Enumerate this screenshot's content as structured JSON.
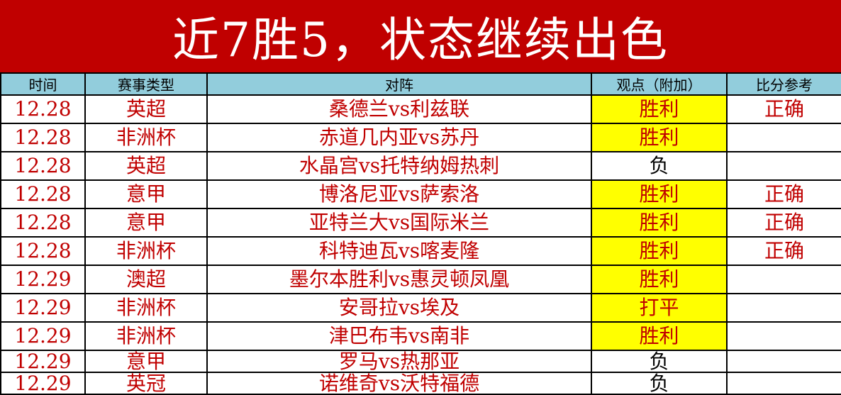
{
  "title": "近7胜5，状态继续出色",
  "headers": [
    "时间",
    "赛事类型",
    "对阵",
    "观点（附加）",
    "比分参考"
  ],
  "colors": {
    "title_bg": "#c00000",
    "header_bg": "#92cddc",
    "highlight": "#ffff00",
    "text": "#c00000"
  },
  "rows": [
    {
      "date": "12.28",
      "league": "英超",
      "match": "桑德兰vs利兹联",
      "pick": "胜利",
      "result": "正确",
      "hl": true
    },
    {
      "date": "12.28",
      "league": "非洲杯",
      "match": "赤道几内亚vs苏丹",
      "pick": "胜利",
      "result": "",
      "hl": true
    },
    {
      "date": "12.28",
      "league": "英超",
      "match": "水晶宫vs托特纳姆热刺",
      "pick": "负",
      "result": "",
      "hl": false
    },
    {
      "date": "12.28",
      "league": "意甲",
      "match": "博洛尼亚vs萨索洛",
      "pick": "胜利",
      "result": "正确",
      "hl": true
    },
    {
      "date": "12.28",
      "league": "意甲",
      "match": "亚特兰大vs国际米兰",
      "pick": "胜利",
      "result": "正确",
      "hl": true
    },
    {
      "date": "12.28",
      "league": "非洲杯",
      "match": "科特迪瓦vs喀麦隆",
      "pick": "胜利",
      "result": "正确",
      "hl": true
    },
    {
      "date": "12.29",
      "league": "澳超",
      "match": "墨尔本胜利vs惠灵顿凤凰",
      "pick": "胜利",
      "result": "",
      "hl": true
    },
    {
      "date": "12.29",
      "league": "非洲杯",
      "match": "安哥拉vs埃及",
      "pick": "打平",
      "result": "",
      "hl": true
    },
    {
      "date": "12.29",
      "league": "非洲杯",
      "match": "津巴布韦vs南非",
      "pick": "胜利",
      "result": "",
      "hl": true
    },
    {
      "date": "12.29",
      "league": "意甲",
      "match": "罗马vs热那亚",
      "pick": "负",
      "result": "",
      "hl": false
    },
    {
      "date": "12.29",
      "league": "英冠",
      "match": "诺维奇vs沃特福德",
      "pick": "负",
      "result": "",
      "hl": false
    }
  ]
}
